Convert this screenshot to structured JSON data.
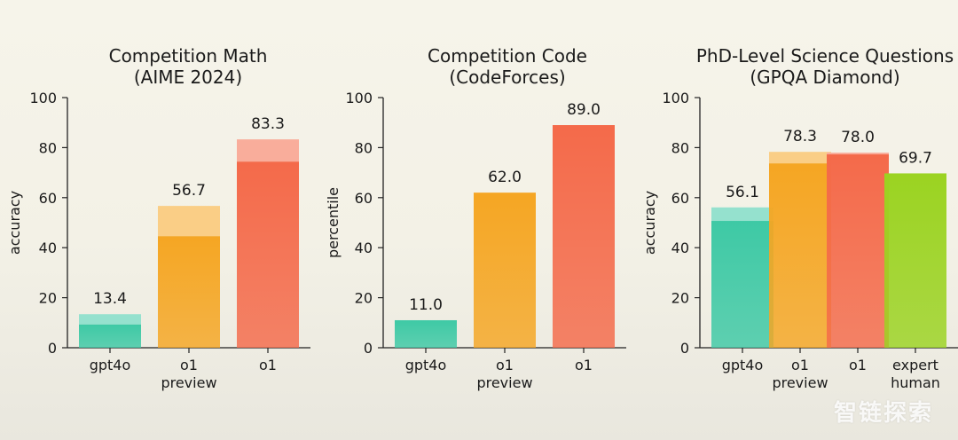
{
  "chart_data": [
    {
      "type": "bar",
      "title": "Competition Math",
      "subtitle": "(AIME 2024)",
      "ylabel": "accuracy",
      "ylim": [
        0,
        100
      ],
      "yticks": [
        0,
        20,
        40,
        60,
        80,
        100
      ],
      "categories": [
        [
          "gpt4o"
        ],
        [
          "o1",
          "preview"
        ],
        [
          "o1"
        ]
      ],
      "values": [
        13.4,
        56.7,
        83.3
      ],
      "inner_values": [
        9.3,
        44.6,
        74.4
      ],
      "labels": [
        "13.4",
        "56.7",
        "83.3"
      ],
      "colors": [
        "#3ec9a5",
        "#f5a623",
        "#f46a4a"
      ]
    },
    {
      "type": "bar",
      "title": "Competition Code",
      "subtitle": "(CodeForces)",
      "ylabel": "percentile",
      "ylim": [
        0,
        100
      ],
      "yticks": [
        0,
        20,
        40,
        60,
        80,
        100
      ],
      "categories": [
        [
          "gpt4o"
        ],
        [
          "o1",
          "preview"
        ],
        [
          "o1"
        ]
      ],
      "values": [
        11.0,
        62.0,
        89.0
      ],
      "labels": [
        "11.0",
        "62.0",
        "89.0"
      ],
      "colors": [
        "#3ec9a5",
        "#f5a623",
        "#f46a4a"
      ]
    },
    {
      "type": "bar",
      "title": "PhD-Level Science Questions",
      "subtitle": "(GPQA Diamond)",
      "ylabel": "accuracy",
      "ylim": [
        0,
        100
      ],
      "yticks": [
        0,
        20,
        40,
        60,
        80,
        100
      ],
      "categories": [
        [
          "gpt4o"
        ],
        [
          "o1",
          "preview"
        ],
        [
          "o1"
        ],
        [
          "expert",
          "human"
        ]
      ],
      "values": [
        56.1,
        78.3,
        78.0,
        69.7
      ],
      "inner_values": [
        50.7,
        73.7,
        77.3
      ],
      "labels": [
        "56.1",
        "78.3",
        "78.0",
        "69.7"
      ],
      "colors": [
        "#3ec9a5",
        "#f5a623",
        "#f46a4a",
        "#9bd321"
      ]
    }
  ],
  "watermark": "智链探索"
}
